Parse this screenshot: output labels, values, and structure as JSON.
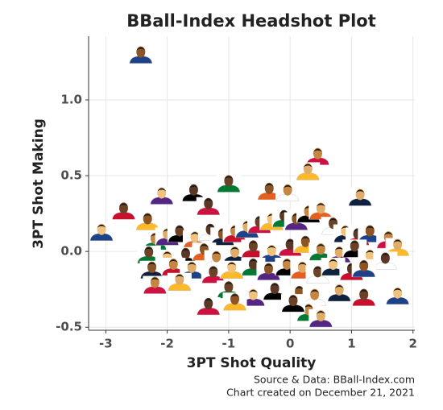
{
  "chart_data": {
    "type": "scatter",
    "title": "BBall-Index Headshot Plot",
    "x_label": "3PT Shot Quality",
    "y_label": "3PT Shot Making",
    "caption": [
      "Source & Data: BBall-Index.com",
      "Chart created on December 21, 2021"
    ],
    "xlim": [
      -3.28,
      2.03
    ],
    "ylim": [
      -0.52,
      1.42
    ],
    "xticks": [
      -3,
      -2,
      -1,
      0,
      1,
      2
    ],
    "yticks": [
      -0.5,
      {
        "value": 0,
        "label": "0.0"
      },
      0.5,
      {
        "value": 1,
        "label": "1.0"
      }
    ],
    "grid": true,
    "x": [
      -2.43,
      0.45,
      0.29,
      -1.0,
      -2.09,
      -1.57,
      -0.34,
      -0.04,
      1.14,
      -2.71,
      -3.07,
      -1.33,
      -2.32,
      -2.2,
      -2.0,
      -1.8,
      -1.55,
      -1.3,
      -1.1,
      -0.9,
      -0.7,
      -0.5,
      -0.3,
      -0.1,
      0.1,
      0.3,
      0.5,
      0.7,
      0.9,
      1.1,
      1.3,
      1.6,
      1.75,
      -2.3,
      -2.0,
      -1.7,
      -1.4,
      -1.2,
      -0.9,
      -0.6,
      -0.3,
      0.0,
      0.25,
      0.5,
      0.8,
      1.05,
      1.3,
      1.55,
      -2.25,
      -1.9,
      -1.6,
      -1.25,
      -0.95,
      -0.6,
      -0.35,
      -0.05,
      0.2,
      0.45,
      0.7,
      1.0,
      1.2,
      -2.2,
      -1.8,
      -1.0,
      -0.6,
      -0.25,
      0.15,
      0.4,
      0.8,
      1.2,
      1.75,
      -1.33,
      -0.9,
      0.3,
      0.5,
      0.05
    ],
    "y": [
      1.3,
      0.63,
      0.53,
      0.45,
      0.37,
      0.39,
      0.4,
      0.39,
      0.36,
      0.27,
      0.13,
      0.3,
      0.2,
      0.07,
      0.1,
      0.12,
      0.08,
      0.13,
      0.1,
      0.12,
      0.15,
      0.18,
      0.2,
      0.22,
      0.2,
      0.25,
      0.27,
      0.17,
      0.12,
      0.1,
      0.12,
      0.08,
      0.03,
      -0.02,
      -0.05,
      -0.03,
      0.0,
      -0.05,
      -0.02,
      0.02,
      -0.01,
      0.03,
      0.05,
      0.0,
      -0.02,
      0.02,
      -0.04,
      -0.06,
      -0.12,
      -0.1,
      -0.12,
      -0.15,
      -0.12,
      -0.1,
      -0.13,
      -0.1,
      -0.12,
      -0.15,
      -0.1,
      -0.13,
      -0.11,
      -0.22,
      -0.2,
      -0.25,
      -0.3,
      -0.26,
      -0.28,
      -0.3,
      -0.27,
      -0.3,
      -0.29,
      -0.36,
      -0.33,
      -0.4,
      -0.44,
      -0.34
    ]
  }
}
